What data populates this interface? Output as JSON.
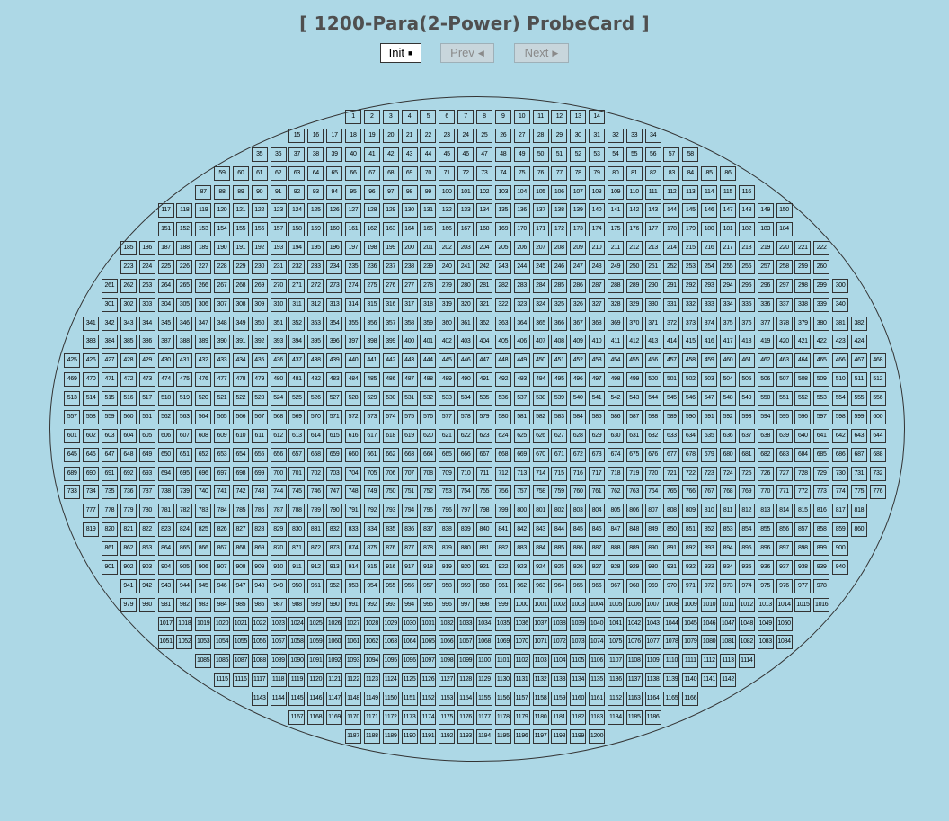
{
  "header": {
    "title": "[ 1200-Para(2-Power) ProbeCard ]"
  },
  "toolbar": {
    "init": {
      "mnemonic": "I",
      "label_rest": "nit",
      "glyph": "■"
    },
    "prev": {
      "mnemonic": "P",
      "label_rest": "rev",
      "glyph": "◀"
    },
    "next": {
      "mnemonic": "N",
      "label_rest": "ext",
      "glyph": "▶"
    }
  },
  "wafer": {
    "die_count": 1200,
    "rows": [
      {
        "first": 1,
        "last": 14
      },
      {
        "first": 15,
        "last": 34
      },
      {
        "first": 35,
        "last": 58
      },
      {
        "first": 59,
        "last": 86
      },
      {
        "first": 87,
        "last": 116
      },
      {
        "first": 117,
        "last": 150
      },
      {
        "first": 151,
        "last": 184
      },
      {
        "first": 185,
        "last": 222
      },
      {
        "first": 223,
        "last": 260
      },
      {
        "first": 261,
        "last": 300
      },
      {
        "first": 301,
        "last": 340
      },
      {
        "first": 341,
        "last": 382
      },
      {
        "first": 383,
        "last": 424
      },
      {
        "first": 425,
        "last": 468
      },
      {
        "first": 469,
        "last": 512
      },
      {
        "first": 513,
        "last": 556
      },
      {
        "first": 557,
        "last": 600
      },
      {
        "first": 601,
        "last": 644
      },
      {
        "first": 645,
        "last": 688
      },
      {
        "first": 689,
        "last": 732
      },
      {
        "first": 733,
        "last": 776
      },
      {
        "first": 777,
        "last": 818
      },
      {
        "first": 819,
        "last": 860
      },
      {
        "first": 861,
        "last": 900
      },
      {
        "first": 901,
        "last": 940
      },
      {
        "first": 941,
        "last": 978
      },
      {
        "first": 979,
        "last": 1016
      },
      {
        "first": 1017,
        "last": 1050
      },
      {
        "first": 1051,
        "last": 1084
      },
      {
        "first": 1085,
        "last": 1114
      },
      {
        "first": 1115,
        "last": 1142
      },
      {
        "first": 1143,
        "last": 1166
      },
      {
        "first": 1167,
        "last": 1186
      },
      {
        "first": 1187,
        "last": 1200
      }
    ]
  },
  "colors": {
    "background": "#add8e6",
    "die_border": "#333333",
    "title": "#4f4f4f"
  }
}
